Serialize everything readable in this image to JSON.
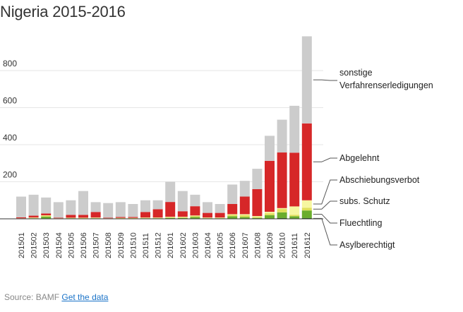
{
  "header": {
    "title": "Nigeria 2015-2016"
  },
  "footer": {
    "source_label": "Source: BAMF",
    "link_label": "Get the data"
  },
  "colors": {
    "sonstige": "#cccccc",
    "abgelehnt": "#d62728",
    "abschiebungsverbot": "#f6f6a0",
    "subs_schutz": "#e0e05a",
    "fluechtling": "#6aad2d",
    "asylberechtigt": "#2e6b12"
  },
  "chart_data": {
    "type": "bar",
    "stacked": true,
    "title": "Nigeria 2015-2016",
    "xlabel": "",
    "ylabel": "",
    "ylim": [
      0,
      1000
    ],
    "yticks": [
      200,
      400,
      600,
      800
    ],
    "grid": true,
    "categories": [
      "201501",
      "201502",
      "201503",
      "201504",
      "201505",
      "201506",
      "201507",
      "201508",
      "201509",
      "201510",
      "201511",
      "201512",
      "201601",
      "201602",
      "201603",
      "201604",
      "201605",
      "201606",
      "201607",
      "201608",
      "201609",
      "201610",
      "201611",
      "201612"
    ],
    "series": [
      {
        "name": "Asylberechtigt",
        "key": "asylberechtigt",
        "values": [
          0,
          0,
          2,
          0,
          0,
          0,
          0,
          0,
          0,
          0,
          0,
          0,
          0,
          0,
          2,
          0,
          0,
          2,
          2,
          0,
          2,
          5,
          2,
          5
        ]
      },
      {
        "name": "Fluechtling",
        "key": "fluechtling",
        "values": [
          2,
          3,
          10,
          2,
          3,
          2,
          3,
          2,
          2,
          2,
          3,
          3,
          5,
          5,
          8,
          3,
          3,
          12,
          8,
          5,
          18,
          30,
          12,
          40
        ]
      },
      {
        "name": "subs. Schutz",
        "key": "subs_schutz",
        "values": [
          0,
          2,
          5,
          0,
          2,
          2,
          2,
          0,
          2,
          2,
          2,
          2,
          3,
          3,
          5,
          2,
          2,
          8,
          10,
          5,
          10,
          18,
          8,
          15
        ]
      },
      {
        "name": "Abschiebungsverbot",
        "key": "abschiebungsverbot",
        "values": [
          1,
          2,
          2,
          1,
          1,
          2,
          2,
          1,
          1,
          1,
          2,
          2,
          3,
          3,
          3,
          2,
          2,
          3,
          5,
          5,
          8,
          5,
          45,
          40
        ]
      },
      {
        "name": "Abgelehnt",
        "key": "abgelehnt",
        "values": [
          5,
          10,
          10,
          3,
          15,
          15,
          30,
          3,
          5,
          5,
          30,
          45,
          80,
          30,
          50,
          25,
          25,
          55,
          95,
          145,
          275,
          300,
          290,
          415
        ]
      },
      {
        "name": "sonstige Verfahrenserledigungen",
        "key": "sonstige",
        "values": [
          112,
          113,
          86,
          84,
          79,
          129,
          53,
          79,
          80,
          70,
          63,
          48,
          109,
          109,
          62,
          58,
          48,
          105,
          85,
          110,
          135,
          177,
          253,
          470
        ]
      }
    ],
    "legend": [
      {
        "key": "sonstige",
        "lines": [
          "sonstige",
          "Verfahrenserledigungen"
        ]
      },
      {
        "key": "abgelehnt",
        "lines": [
          "Abgelehnt"
        ]
      },
      {
        "key": "abschiebungsverbot",
        "lines": [
          "Abschiebungsverbot"
        ]
      },
      {
        "key": "subs_schutz",
        "lines": [
          "subs. Schutz"
        ]
      },
      {
        "key": "fluechtling",
        "lines": [
          "Fluechtling"
        ]
      },
      {
        "key": "asylberechtigt",
        "lines": [
          "Asylberechtigt"
        ]
      }
    ],
    "legend_placement": "right"
  }
}
